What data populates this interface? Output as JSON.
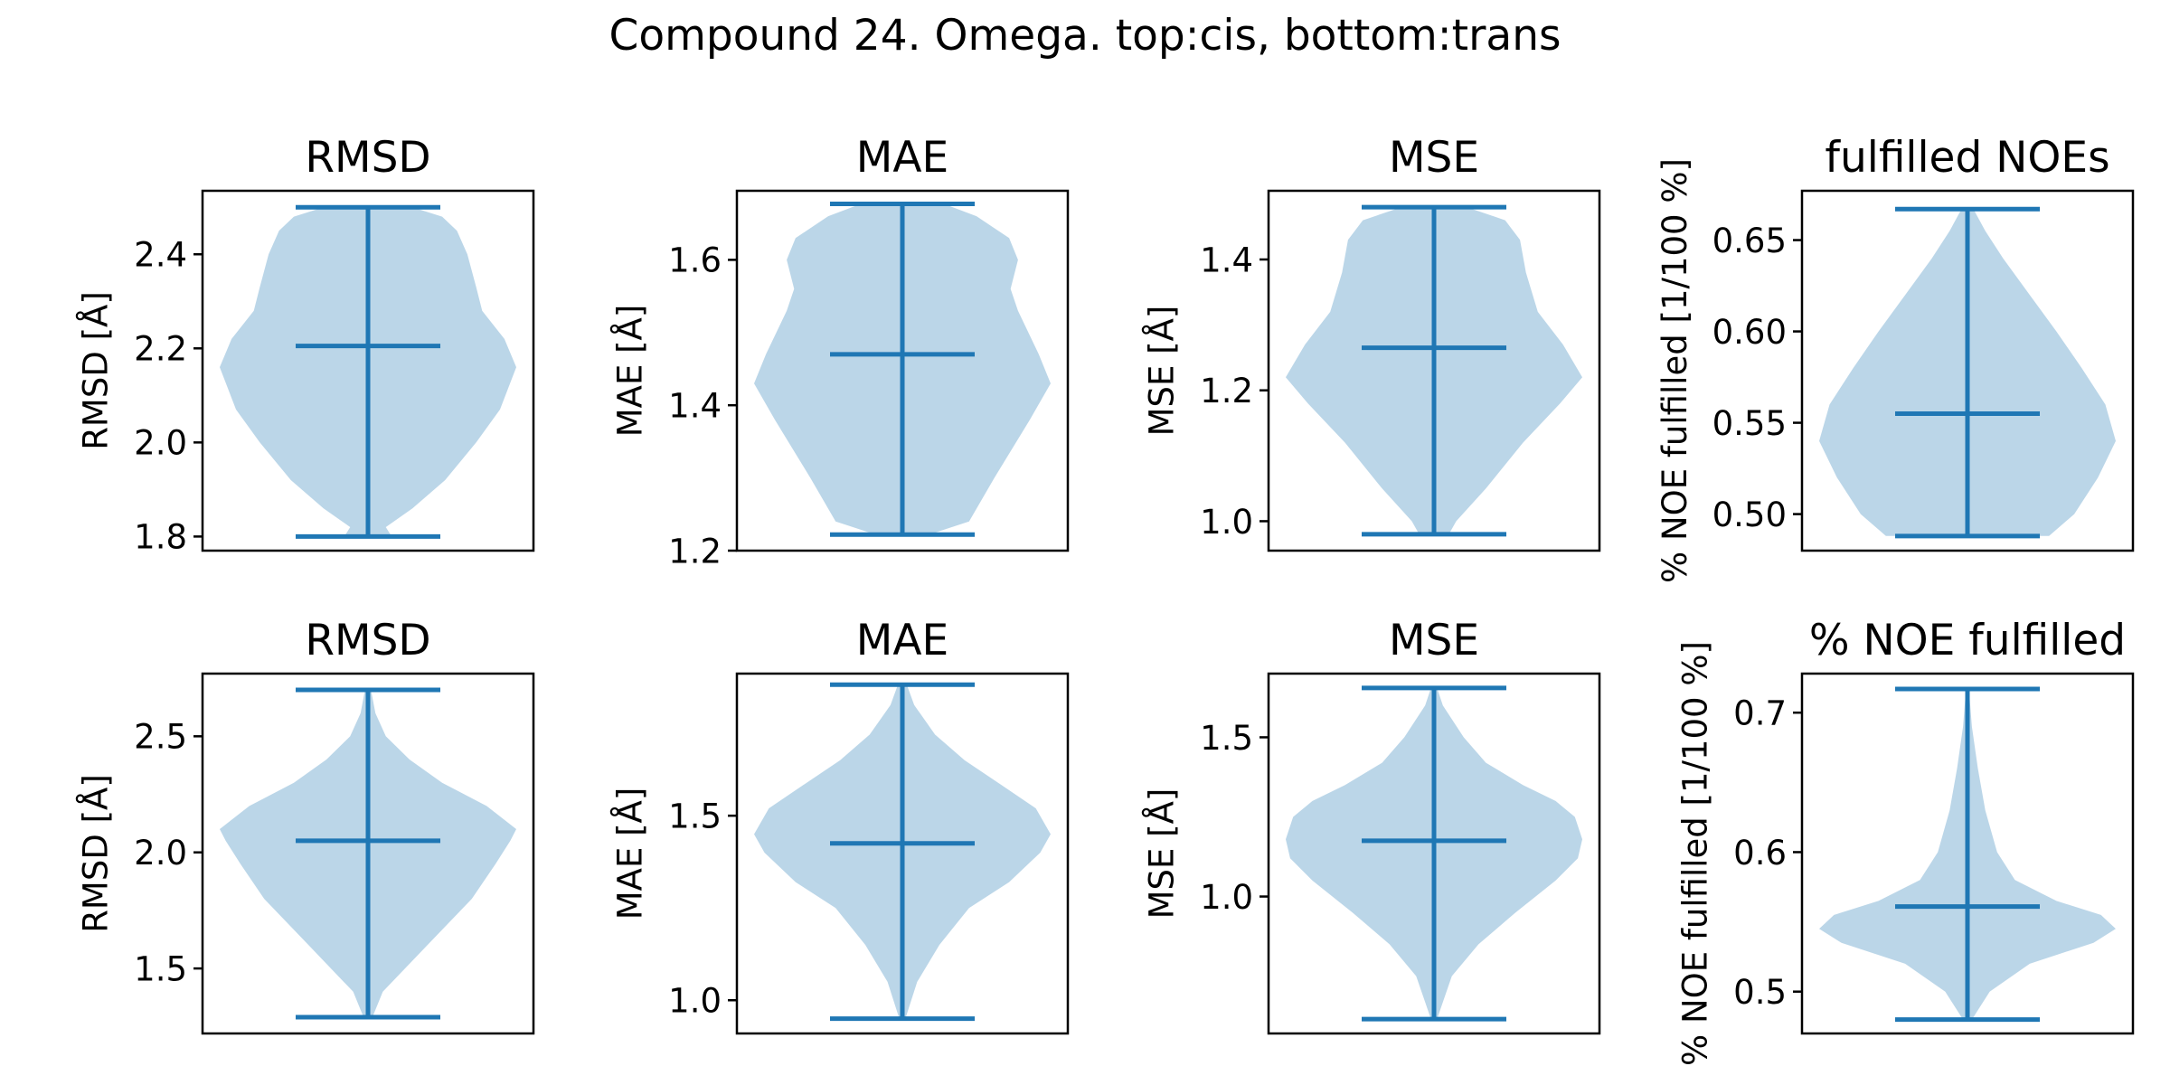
{
  "figure": {
    "title": "Compound 24. Omega. top:cis, bottom:trans"
  },
  "style": {
    "violin_fill": "#1f77b4",
    "violin_opacity": 0.3,
    "line_color": "#1f77b4",
    "axes_color": "#000000",
    "background": "#ffffff"
  },
  "chart_data": [
    {
      "type": "violin",
      "row": "top",
      "title": "RMSD",
      "ylabel": "RMSD [Å]",
      "ylim": [
        1.77,
        2.535
      ],
      "yticks": [
        1.8,
        2.0,
        2.2,
        2.4
      ],
      "ytick_labels": [
        "1.8",
        "2.0",
        "2.2",
        "2.4"
      ],
      "min": 1.8,
      "max": 2.5,
      "median": 2.205,
      "density": [
        [
          1.8,
          0.16
        ],
        [
          1.82,
          0.12
        ],
        [
          1.86,
          0.3
        ],
        [
          1.92,
          0.52
        ],
        [
          2.0,
          0.73
        ],
        [
          2.07,
          0.89
        ],
        [
          2.16,
          1.0
        ],
        [
          2.22,
          0.92
        ],
        [
          2.28,
          0.77
        ],
        [
          2.33,
          0.73
        ],
        [
          2.4,
          0.67
        ],
        [
          2.45,
          0.6
        ],
        [
          2.48,
          0.5
        ],
        [
          2.5,
          0.3
        ]
      ]
    },
    {
      "type": "violin",
      "row": "top",
      "title": "MAE",
      "ylabel": "MAE [Å]",
      "ylim": [
        1.2,
        1.695
      ],
      "yticks": [
        1.2,
        1.4,
        1.6
      ],
      "ytick_labels": [
        "1.2",
        "1.4",
        "1.6"
      ],
      "min": 1.222,
      "max": 1.677,
      "median": 1.47,
      "density": [
        [
          1.222,
          0.18
        ],
        [
          1.24,
          0.45
        ],
        [
          1.3,
          0.62
        ],
        [
          1.38,
          0.86
        ],
        [
          1.43,
          1.0
        ],
        [
          1.47,
          0.92
        ],
        [
          1.53,
          0.78
        ],
        [
          1.56,
          0.73
        ],
        [
          1.6,
          0.78
        ],
        [
          1.63,
          0.72
        ],
        [
          1.66,
          0.5
        ],
        [
          1.677,
          0.28
        ]
      ]
    },
    {
      "type": "violin",
      "row": "top",
      "title": "MSE",
      "ylabel": "MSE [Å]",
      "ylim": [
        0.955,
        1.505
      ],
      "yticks": [
        1.0,
        1.2,
        1.4
      ],
      "ytick_labels": [
        "1.0",
        "1.2",
        "1.4"
      ],
      "min": 0.98,
      "max": 1.48,
      "median": 1.265,
      "density": [
        [
          0.98,
          0.1
        ],
        [
          1.0,
          0.15
        ],
        [
          1.05,
          0.35
        ],
        [
          1.12,
          0.6
        ],
        [
          1.18,
          0.85
        ],
        [
          1.22,
          1.0
        ],
        [
          1.27,
          0.87
        ],
        [
          1.32,
          0.7
        ],
        [
          1.38,
          0.62
        ],
        [
          1.43,
          0.58
        ],
        [
          1.46,
          0.48
        ],
        [
          1.48,
          0.22
        ]
      ]
    },
    {
      "type": "violin",
      "row": "top",
      "title": "fulfilled NOEs",
      "ylabel": "% NOE fulfilled [1/100 %]",
      "ylim": [
        0.48,
        0.677
      ],
      "yticks": [
        0.5,
        0.55,
        0.6,
        0.65
      ],
      "ytick_labels": [
        "0.50",
        "0.55",
        "0.60",
        "0.65"
      ],
      "min": 0.488,
      "max": 0.667,
      "median": 0.555,
      "density": [
        [
          0.488,
          0.55
        ],
        [
          0.5,
          0.72
        ],
        [
          0.52,
          0.88
        ],
        [
          0.54,
          1.0
        ],
        [
          0.56,
          0.93
        ],
        [
          0.58,
          0.77
        ],
        [
          0.6,
          0.6
        ],
        [
          0.62,
          0.42
        ],
        [
          0.64,
          0.24
        ],
        [
          0.655,
          0.12
        ],
        [
          0.667,
          0.04
        ]
      ]
    },
    {
      "type": "violin",
      "row": "bottom",
      "title": "RMSD",
      "ylabel": "RMSD [Å]",
      "ylim": [
        1.22,
        2.77
      ],
      "yticks": [
        1.5,
        2.0,
        2.5
      ],
      "ytick_labels": [
        "1.5",
        "2.0",
        "2.5"
      ],
      "min": 1.29,
      "max": 2.7,
      "median": 2.05,
      "density": [
        [
          1.29,
          0.03
        ],
        [
          1.4,
          0.1
        ],
        [
          1.6,
          0.4
        ],
        [
          1.8,
          0.7
        ],
        [
          1.95,
          0.86
        ],
        [
          2.05,
          0.96
        ],
        [
          2.1,
          1.0
        ],
        [
          2.2,
          0.8
        ],
        [
          2.3,
          0.5
        ],
        [
          2.4,
          0.28
        ],
        [
          2.5,
          0.12
        ],
        [
          2.6,
          0.05
        ],
        [
          2.7,
          0.02
        ]
      ]
    },
    {
      "type": "violin",
      "row": "bottom",
      "title": "MAE",
      "ylabel": "MAE [Å]",
      "ylim": [
        0.91,
        1.885
      ],
      "yticks": [
        1.0,
        1.5
      ],
      "ytick_labels": [
        "1.0",
        "1.5"
      ],
      "min": 0.95,
      "max": 1.855,
      "median": 1.425,
      "density": [
        [
          0.95,
          0.02
        ],
        [
          1.05,
          0.1
        ],
        [
          1.15,
          0.25
        ],
        [
          1.25,
          0.45
        ],
        [
          1.32,
          0.72
        ],
        [
          1.4,
          0.93
        ],
        [
          1.45,
          1.0
        ],
        [
          1.52,
          0.9
        ],
        [
          1.58,
          0.68
        ],
        [
          1.65,
          0.42
        ],
        [
          1.72,
          0.22
        ],
        [
          1.8,
          0.08
        ],
        [
          1.855,
          0.03
        ]
      ]
    },
    {
      "type": "violin",
      "row": "bottom",
      "title": "MSE",
      "ylabel": "MSE [Å]",
      "ylim": [
        0.57,
        1.7
      ],
      "yticks": [
        1.0,
        1.5
      ],
      "ytick_labels": [
        "1.0",
        "1.5"
      ],
      "min": 0.615,
      "max": 1.655,
      "median": 1.175,
      "density": [
        [
          0.615,
          0.02
        ],
        [
          0.75,
          0.12
        ],
        [
          0.85,
          0.3
        ],
        [
          0.95,
          0.55
        ],
        [
          1.05,
          0.82
        ],
        [
          1.12,
          0.97
        ],
        [
          1.18,
          1.0
        ],
        [
          1.25,
          0.95
        ],
        [
          1.3,
          0.82
        ],
        [
          1.35,
          0.6
        ],
        [
          1.42,
          0.35
        ],
        [
          1.5,
          0.2
        ],
        [
          1.6,
          0.06
        ],
        [
          1.655,
          0.02
        ]
      ]
    },
    {
      "type": "violin",
      "row": "bottom",
      "title": "% NOE fulfilled",
      "ylabel": "% NOE fulfilled [1/100 %]",
      "ylim": [
        0.47,
        0.728
      ],
      "yticks": [
        0.5,
        0.6,
        0.7
      ],
      "ytick_labels": [
        "0.5",
        "0.6",
        "0.7"
      ],
      "min": 0.48,
      "max": 0.717,
      "median": 0.561,
      "density": [
        [
          0.48,
          0.03
        ],
        [
          0.5,
          0.15
        ],
        [
          0.52,
          0.42
        ],
        [
          0.535,
          0.85
        ],
        [
          0.545,
          1.0
        ],
        [
          0.555,
          0.9
        ],
        [
          0.565,
          0.6
        ],
        [
          0.58,
          0.32
        ],
        [
          0.6,
          0.2
        ],
        [
          0.63,
          0.12
        ],
        [
          0.66,
          0.07
        ],
        [
          0.69,
          0.03
        ],
        [
          0.717,
          0.01
        ]
      ]
    }
  ]
}
